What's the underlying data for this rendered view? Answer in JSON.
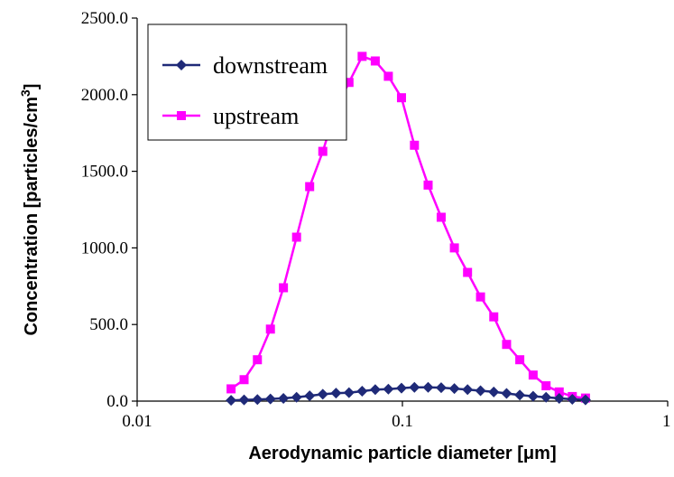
{
  "chart_data": {
    "type": "line",
    "title": "",
    "xlabel": {
      "main": "Aerodynamic particle diameter [",
      "unit": "μm",
      "close": "]"
    },
    "ylabel": {
      "main": "Concentration [particles/cm",
      "sup": "3",
      "close": "]"
    },
    "x_scale": "log",
    "xlim": [
      0.01,
      1
    ],
    "ylim": [
      0,
      2500
    ],
    "x_ticks": [
      0.01,
      0.1,
      1
    ],
    "x_tick_labels": [
      "0.01",
      "0.1",
      "1"
    ],
    "y_ticks": [
      0,
      500,
      1000,
      1500,
      2000,
      2500
    ],
    "y_tick_labels": [
      "0.0",
      "500.0",
      "1000.0",
      "1500.0",
      "2000.0",
      "2500.0"
    ],
    "grid": false,
    "legend_position": "top-left",
    "x": [
      0.0226,
      0.0253,
      0.0284,
      0.0318,
      0.0356,
      0.0399,
      0.0447,
      0.0501,
      0.0562,
      0.0629,
      0.0705,
      0.079,
      0.0885,
      0.0992,
      0.111,
      0.125,
      0.14,
      0.157,
      0.176,
      0.197,
      0.221,
      0.247,
      0.277,
      0.311,
      0.348,
      0.39,
      0.437,
      0.49
    ],
    "series": [
      {
        "name": "downstream",
        "color": "#1f2a78",
        "marker": "diamond",
        "values": [
          5,
          8,
          10,
          14,
          18,
          25,
          35,
          45,
          52,
          55,
          65,
          75,
          78,
          85,
          90,
          90,
          88,
          82,
          75,
          68,
          60,
          50,
          40,
          32,
          25,
          18,
          12,
          8
        ]
      },
      {
        "name": "upstream",
        "color": "#ff00ff",
        "marker": "square",
        "values": [
          80,
          140,
          270,
          470,
          740,
          1070,
          1400,
          1630,
          1910,
          2080,
          2250,
          2220,
          2120,
          1980,
          1670,
          1410,
          1200,
          1000,
          840,
          680,
          550,
          370,
          270,
          170,
          100,
          60,
          30,
          20
        ]
      }
    ]
  }
}
